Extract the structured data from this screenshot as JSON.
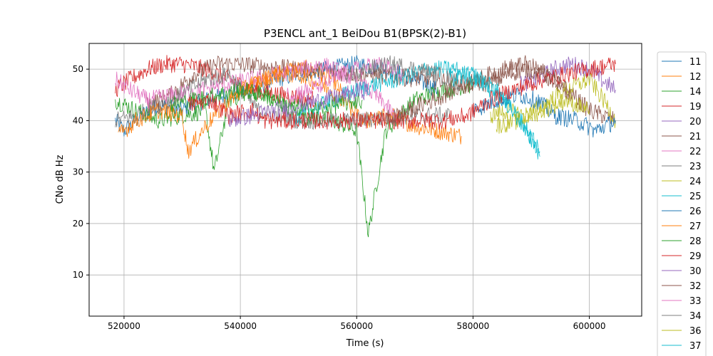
{
  "chart_data": {
    "type": "line",
    "title": "P3ENCL ant_1 BeiDou B1(BPSK(2)-B1)",
    "xlabel": "Time (s)",
    "ylabel": "CNo dB Hz",
    "xlim": [
      514000,
      609000
    ],
    "ylim": [
      2,
      55
    ],
    "xticks": [
      520000,
      540000,
      560000,
      580000,
      600000
    ],
    "yticks": [
      10,
      20,
      30,
      40,
      50
    ],
    "grid": true,
    "legend_position": "outside-right",
    "series": [
      {
        "name": "11",
        "color": "#1f77b4",
        "x": [
          518500,
          520000,
          523000,
          526000,
          530000,
          534000,
          538000,
          542000,
          546000,
          550000,
          555000,
          560000,
          565000,
          570000,
          574000
        ],
        "y": [
          40,
          38,
          41,
          43,
          42,
          44,
          45,
          46,
          48,
          49,
          50,
          51,
          50,
          48,
          46
        ]
      },
      {
        "name": "12",
        "color": "#ff7f0e",
        "x": [
          540000,
          544000,
          548000,
          552000,
          556000,
          559000,
          562000,
          566000,
          570000,
          574000,
          578000
        ],
        "y": [
          46,
          48,
          50,
          50,
          48,
          42,
          40,
          41,
          39,
          38,
          37
        ]
      },
      {
        "name": "14",
        "color": "#2ca02c",
        "x": [
          518500,
          522000,
          526000,
          530000,
          534000,
          535500,
          538000,
          542000,
          546000,
          550000,
          556000,
          560000,
          562000,
          565000,
          570000,
          575000,
          580000
        ],
        "y": [
          44,
          42,
          40,
          41,
          42,
          30,
          44,
          46,
          44,
          41,
          40,
          38,
          18,
          38,
          44,
          46,
          47
        ]
      },
      {
        "name": "19",
        "color": "#d62728",
        "x": [
          518500,
          521000,
          524000,
          527000,
          530000,
          534000,
          538000,
          542000,
          547000,
          553000
        ],
        "y": [
          46,
          48,
          50,
          51,
          51,
          50,
          48,
          46,
          45,
          44
        ]
      },
      {
        "name": "20",
        "color": "#9467bd",
        "x": [
          588000,
          591000,
          594000,
          597000,
          600000,
          602000,
          604500
        ],
        "y": [
          47,
          48,
          50,
          51,
          50,
          48,
          46
        ]
      },
      {
        "name": "21",
        "color": "#8c564b",
        "x": [
          524000,
          528000,
          532000,
          536000,
          539000,
          583000,
          586000,
          589000,
          592000,
          596000,
          600000,
          604500
        ],
        "y": [
          43,
          45,
          49,
          51,
          51,
          47,
          49,
          50,
          49,
          46,
          42,
          40
        ]
      },
      {
        "name": "22",
        "color": "#e377c2",
        "x": [
          518500,
          521000,
          524000,
          551000,
          554000,
          558000,
          562000,
          565000,
          567000
        ],
        "y": [
          48,
          46,
          44,
          50,
          51,
          49,
          46,
          43,
          40
        ]
      },
      {
        "name": "23",
        "color": "#7f7f7f",
        "x": [
          518500,
          522000,
          526000,
          530000,
          534000,
          538000,
          543000,
          550000,
          560000,
          570000,
          576000
        ],
        "y": [
          40,
          41,
          43,
          45,
          48,
          49,
          42,
          40,
          40,
          41,
          41
        ]
      },
      {
        "name": "24",
        "color": "#bcbd22",
        "x": [
          583000,
          586000,
          589000,
          592000,
          596000,
          600000,
          603000,
          604500
        ],
        "y": [
          41,
          42,
          41,
          43,
          46,
          48,
          43,
          40
        ]
      },
      {
        "name": "25",
        "color": "#17becf",
        "x": [
          549500,
          552000,
          558000,
          563000,
          567000,
          572000,
          577000,
          582000,
          586000,
          589000,
          591500
        ],
        "y": [
          40,
          42,
          45,
          47,
          48,
          50,
          50,
          47,
          43,
          39,
          33
        ]
      },
      {
        "name": "26",
        "color": "#1f77b4",
        "x": [
          580000,
          584000,
          588000,
          591000,
          594000,
          598000,
          601000,
          604500
        ],
        "y": [
          42,
          44,
          45,
          44,
          41,
          40,
          38,
          40
        ]
      },
      {
        "name": "27",
        "color": "#ff7f0e",
        "x": [
          519000,
          522000,
          526000,
          530000,
          531000,
          534000,
          538000,
          542000,
          546000,
          550000,
          554000,
          558000
        ],
        "y": [
          37,
          40,
          42,
          41,
          34,
          39,
          44,
          47,
          49,
          49,
          47,
          44
        ]
      },
      {
        "name": "28",
        "color": "#2ca02c",
        "x": [
          528000,
          532000,
          536000,
          540000,
          544000,
          548000,
          552000,
          556000,
          561000
        ],
        "y": [
          43,
          44,
          45,
          46,
          45,
          43,
          42,
          43,
          44
        ]
      },
      {
        "name": "29",
        "color": "#d62728",
        "x": [
          531000,
          535000,
          538000,
          542000,
          544000,
          575000,
          579000,
          583000,
          587000,
          592000,
          596000,
          600000,
          604500
        ],
        "y": [
          43,
          44,
          41,
          42,
          40,
          40,
          41,
          44,
          46,
          48,
          49,
          50,
          51
        ]
      },
      {
        "name": "30",
        "color": "#9467bd",
        "x": [
          538000,
          542000,
          546000,
          550000,
          554000,
          558000,
          562000
        ],
        "y": [
          40,
          41,
          42,
          43,
          44,
          45,
          46
        ]
      },
      {
        "name": "32",
        "color": "#8c564b",
        "x": [
          565000,
          569000,
          573000,
          577000,
          581000,
          585000,
          589000,
          593000,
          597000
        ],
        "y": [
          40,
          42,
          44,
          46,
          48,
          50,
          51,
          49,
          45
        ]
      },
      {
        "name": "33",
        "color": "#e377c2",
        "x": [
          548000,
          552000,
          556000,
          560000,
          564000,
          568000
        ],
        "y": [
          45,
          46,
          48,
          50,
          51,
          49
        ]
      },
      {
        "name": "34",
        "color": "#7f7f7f",
        "x": [
          558000,
          562000,
          566000,
          570000,
          574000,
          578000
        ],
        "y": [
          48,
          50,
          51,
          50,
          49,
          47
        ]
      },
      {
        "name": "36",
        "color": "#bcbd22",
        "x": [
          584000,
          588000,
          592000,
          596000,
          600000
        ],
        "y": [
          39,
          40,
          42,
          44,
          42
        ]
      },
      {
        "name": "37",
        "color": "#17becf",
        "x": [
          576000,
          580000,
          584000,
          588000,
          591500
        ],
        "y": [
          48,
          49,
          46,
          40,
          34
        ]
      }
    ]
  }
}
